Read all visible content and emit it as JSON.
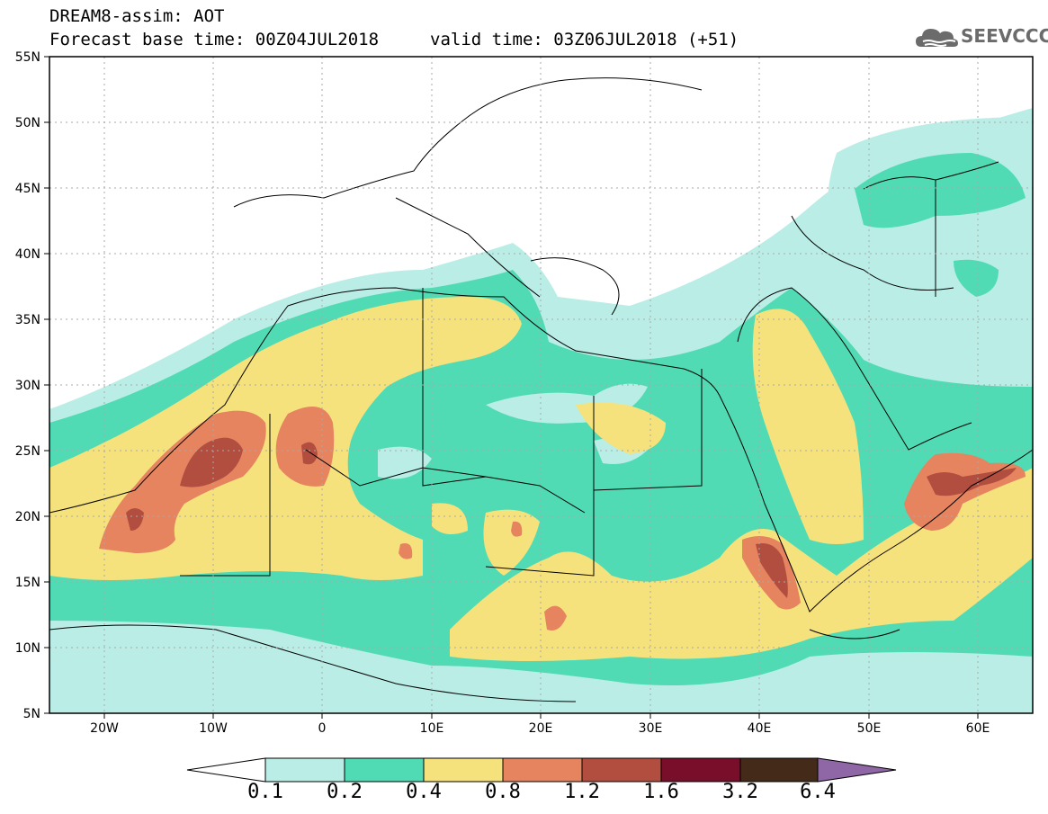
{
  "header": {
    "title": "DREAM8-assim: AOT",
    "base_time": "Forecast base time: 00Z04JUL2018",
    "valid_time": "valid time: 03Z06JUL2018 (+51)"
  },
  "logo": {
    "text": "SEEVCCC",
    "icon": "cloud-icon"
  },
  "map": {
    "lon_range": [
      -25,
      65
    ],
    "lat_range": [
      5,
      55
    ],
    "lat_labels": [
      "55N",
      "50N",
      "45N",
      "40N",
      "35N",
      "30N",
      "25N",
      "20N",
      "15N",
      "10N",
      "5N"
    ],
    "lon_labels": [
      "20W",
      "10W",
      "0",
      "10E",
      "20E",
      "30E",
      "40E",
      "50E",
      "60E"
    ],
    "grid": true
  },
  "colorbar": {
    "levels": [
      "0.1",
      "0.2",
      "0.4",
      "0.8",
      "1.2",
      "1.6",
      "3.2",
      "6.4"
    ],
    "colors": [
      "#ffffff",
      "#b9ede6",
      "#50dbb4",
      "#f6e27d",
      "#e5845f",
      "#b24e3f",
      "#780e2a",
      "#442a19",
      "#8f67a7"
    ]
  }
}
